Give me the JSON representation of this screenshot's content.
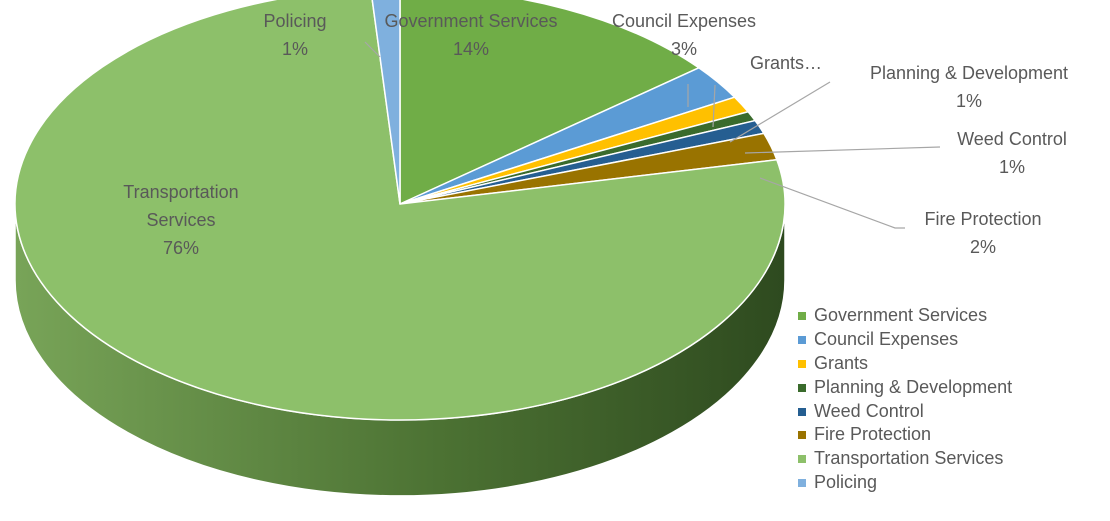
{
  "chart_data": {
    "type": "pie",
    "title": "",
    "legend_position": "right",
    "slices": [
      {
        "name": "Government Services",
        "value": 14,
        "label": "14%",
        "color": "#70AD47"
      },
      {
        "name": "Council Expenses",
        "value": 2.6,
        "label": "3%",
        "color": "#5B9BD5"
      },
      {
        "name": "Grants",
        "value": 1.2,
        "label": "",
        "color": "#FFC000"
      },
      {
        "name": "Planning & Development",
        "value": 0.7,
        "label": "1%",
        "color": "#3A6B2C"
      },
      {
        "name": "Weed Control",
        "value": 1.0,
        "label": "1%",
        "color": "#255E91"
      },
      {
        "name": "Fire Protection",
        "value": 2.0,
        "label": "2%",
        "color": "#997300"
      },
      {
        "name": "Transportation Services",
        "value": 76.3,
        "label": "76%",
        "color": "#8DC06A"
      },
      {
        "name": "Policing",
        "value": 1.2,
        "label": "1%",
        "color": "#7FB0DE"
      }
    ],
    "data_labels": [
      {
        "name": "Policing",
        "text": "1%"
      },
      {
        "name": "Government Services",
        "text": "14%"
      },
      {
        "name": "Council Expenses",
        "text": "3%"
      },
      {
        "name": "Grants…",
        "text": ""
      },
      {
        "name": "Planning & Development",
        "text": "1%"
      },
      {
        "name": "Weed Control",
        "text": "1%"
      },
      {
        "name": "Fire Protection",
        "text": "2%"
      },
      {
        "name": "Transportation",
        "name2": "Services",
        "text": "76%"
      }
    ]
  }
}
